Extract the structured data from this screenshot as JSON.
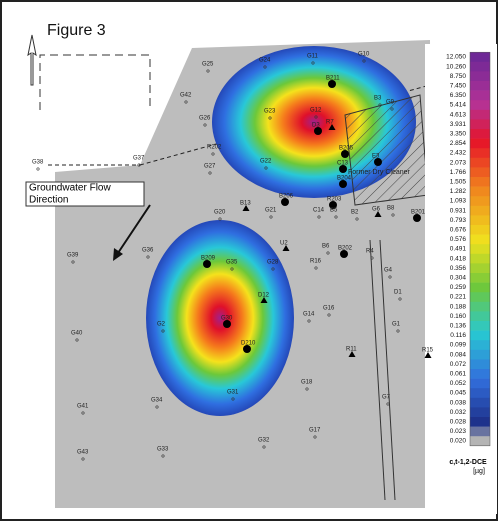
{
  "figure_label": "Figure 3",
  "flow_label": [
    "Groundwater Flow",
    "Direction"
  ],
  "building_label": "Former Dry Cleaner",
  "wells": [
    "G25",
    "G24",
    "G11",
    "G10",
    "B211",
    "G42",
    "G26",
    "G23",
    "G12",
    "B3",
    "G9",
    "D3",
    "R7",
    "B205",
    "C13",
    "E3",
    "R202",
    "G27",
    "G22",
    "B204",
    "G38",
    "G37",
    "B206",
    "R203",
    "B13",
    "G20",
    "G21",
    "C14",
    "B5",
    "B2",
    "G6",
    "B8",
    "B201",
    "B209",
    "U2",
    "B6",
    "B202",
    "R4",
    "G39",
    "G36",
    "G35",
    "G28",
    "R16",
    "G4",
    "D12",
    "G14",
    "G16",
    "D1",
    "G40",
    "G30",
    "G2",
    "D210",
    "G1",
    "R11",
    "R15",
    "G18",
    "G34",
    "G31",
    "G41",
    "G7",
    "G17",
    "G32",
    "G33",
    "G43"
  ],
  "legend": {
    "title": "c,t-1,2-DCE",
    "unit": "[µg]",
    "labels": [
      "12.050",
      "10.260",
      "8.750",
      "7.450",
      "6.350",
      "5.414",
      "4.613",
      "3.931",
      "3.350",
      "2.854",
      "2.432",
      "2.073",
      "1.766",
      "1.505",
      "1.282",
      "1.093",
      "0.931",
      "0.793",
      "0.676",
      "0.576",
      "0.491",
      "0.418",
      "0.356",
      "0.304",
      "0.259",
      "0.221",
      "0.188",
      "0.160",
      "0.136",
      "0.116",
      "0.099",
      "0.084",
      "0.072",
      "0.061",
      "0.052",
      "0.045",
      "0.038",
      "0.032",
      "0.028",
      "0.023",
      "0.020"
    ]
  }
}
